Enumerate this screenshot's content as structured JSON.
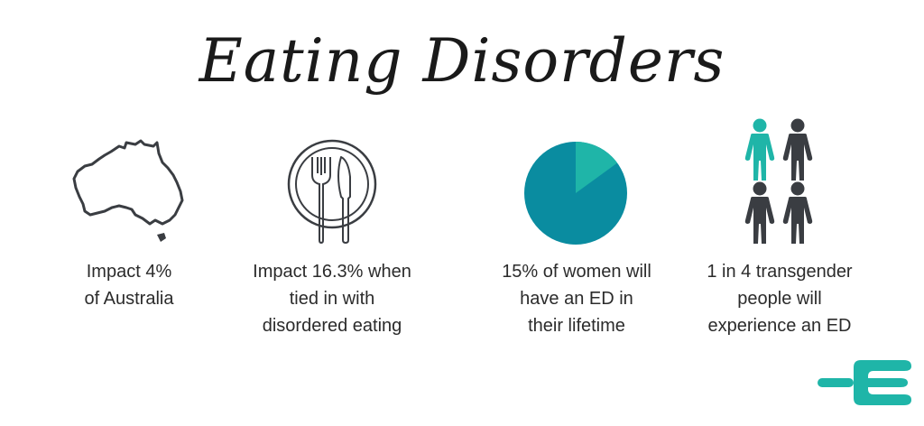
{
  "header": {
    "title": "Eating Disorders"
  },
  "stats": [
    {
      "icon": "australia-map-icon",
      "caption_lines": [
        "Impact 4%",
        "of Australia"
      ]
    },
    {
      "icon": "plate-fork-knife-icon",
      "caption_lines": [
        "Impact 16.3% when",
        "tied in with",
        "disordered eating"
      ]
    },
    {
      "icon": "pie-chart-icon",
      "share_percent": 15,
      "caption_lines": [
        "15% of women will",
        "have an ED in",
        "their lifetime"
      ]
    },
    {
      "icon": "people-group-icon",
      "highlighted_people": 1,
      "total_people": 4,
      "caption_lines": [
        "1 in 4 transgender",
        "people will",
        "experience an ED"
      ]
    }
  ],
  "colors": {
    "teal": "#1fb5a8",
    "dark_teal": "#0a8ca0",
    "dark_gray": "#3a3d42",
    "text": "#2b2b2b"
  },
  "logo": {
    "icon": "fork-e-logo-icon"
  }
}
